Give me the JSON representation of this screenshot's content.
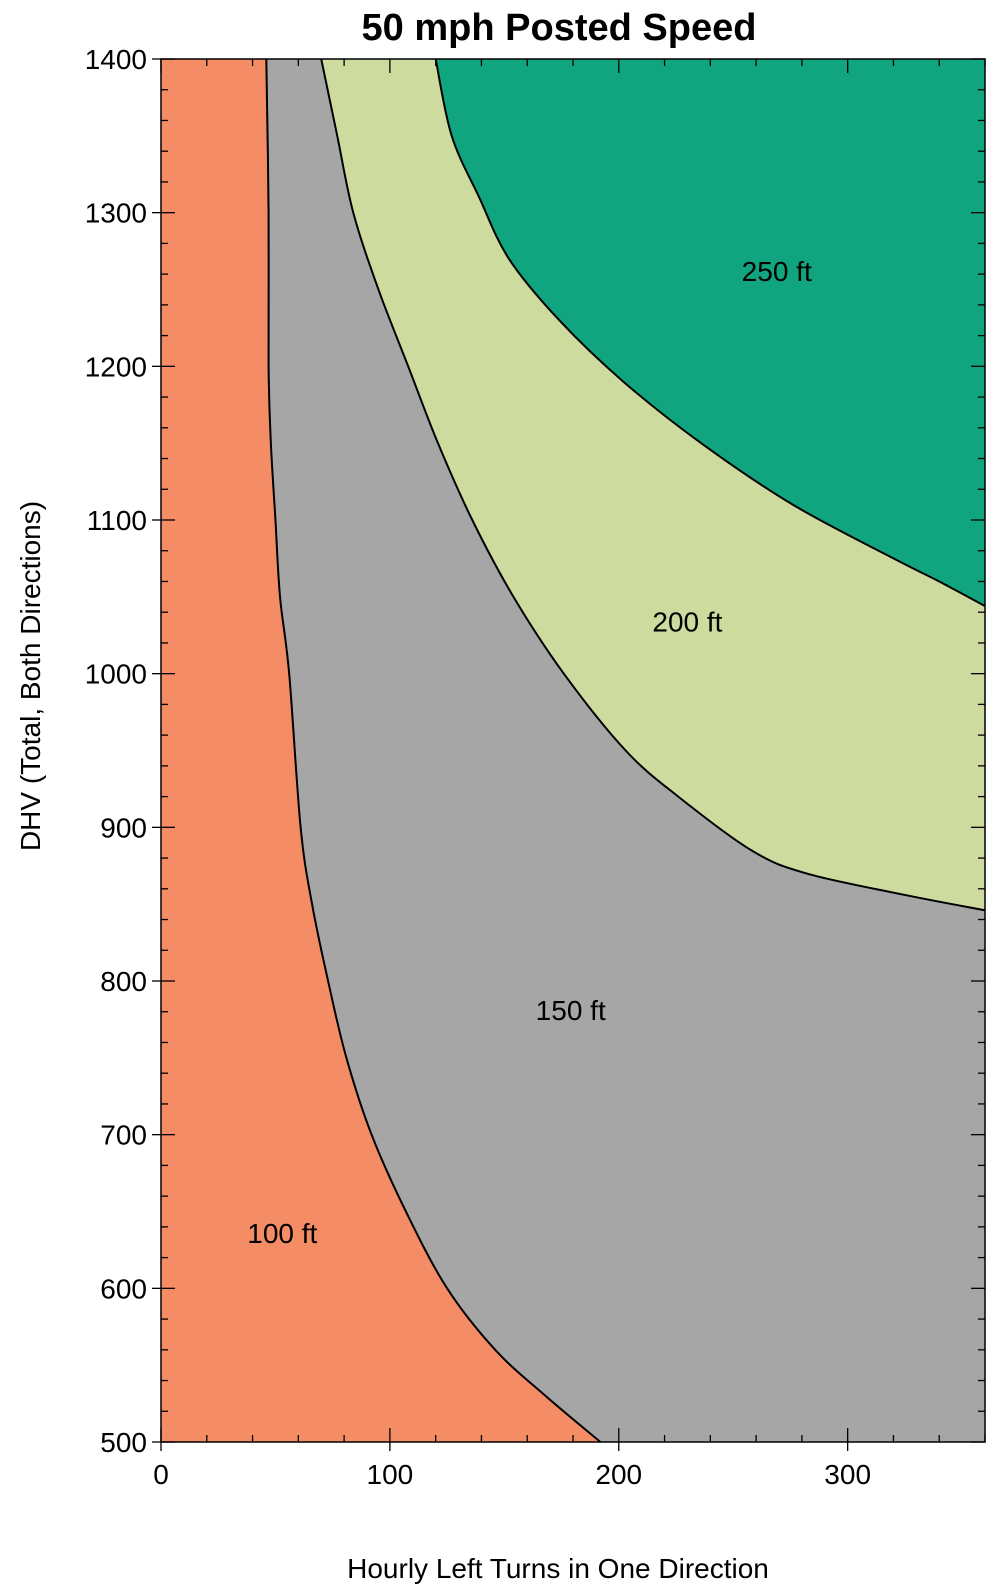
{
  "chart_data": {
    "type": "area",
    "title": "50 mph Posted Speed",
    "xlabel": "Hourly Left Turns in One Direction",
    "ylabel": "DHV (Total, Both Directions)",
    "xlim": [
      0,
      360
    ],
    "ylim": [
      500,
      1400
    ],
    "x_ticks": [
      0,
      100,
      200,
      300
    ],
    "x_tick_labels": [
      "0",
      "100",
      "200",
      "300"
    ],
    "x_minor_step": 20,
    "y_ticks": [
      500,
      600,
      700,
      800,
      900,
      1000,
      1100,
      1200,
      1300,
      1400
    ],
    "y_tick_labels": [
      "500",
      "600",
      "700",
      "800",
      "900",
      "1000",
      "1100",
      "1200",
      "1300",
      "1400"
    ],
    "y_minor_step": 20,
    "grid": false,
    "colors": {
      "100 ft": "#f48c66",
      "150 ft": "#a6a6a6",
      "200 ft": "#cddc9e",
      "250 ft": "#10a57e",
      "boundary": "#000000"
    },
    "regions": [
      {
        "name": "100 ft",
        "label": "100 ft",
        "label_at": [
          53,
          636
        ]
      },
      {
        "name": "150 ft",
        "label": "150 ft",
        "label_at": [
          179,
          781
        ]
      },
      {
        "name": "200 ft",
        "label": "200 ft",
        "label_at": [
          230,
          1034
        ]
      },
      {
        "name": "250 ft",
        "label": "250 ft",
        "label_at": [
          269,
          1262
        ]
      }
    ],
    "boundaries": [
      {
        "between": [
          "100 ft",
          "150 ft"
        ],
        "points": [
          [
            46,
            1400
          ],
          [
            47,
            1300
          ],
          [
            47,
            1200
          ],
          [
            48,
            1150
          ],
          [
            50,
            1100
          ],
          [
            52,
            1050
          ],
          [
            56,
            1000
          ],
          [
            61,
            900
          ],
          [
            66,
            850
          ],
          [
            73,
            800
          ],
          [
            81,
            750
          ],
          [
            92,
            700
          ],
          [
            107,
            650
          ],
          [
            125,
            600
          ],
          [
            146,
            560
          ],
          [
            168,
            530
          ],
          [
            192,
            500
          ]
        ]
      },
      {
        "between": [
          "150 ft",
          "200 ft"
        ],
        "points": [
          [
            70,
            1400
          ],
          [
            77,
            1350
          ],
          [
            84,
            1300
          ],
          [
            95,
            1250
          ],
          [
            108,
            1200
          ],
          [
            121,
            1150
          ],
          [
            136,
            1100
          ],
          [
            154,
            1050
          ],
          [
            176,
            1000
          ],
          [
            203,
            950
          ],
          [
            226,
            920
          ],
          [
            258,
            885
          ],
          [
            282,
            870
          ],
          [
            325,
            856
          ],
          [
            360,
            846
          ]
        ]
      },
      {
        "between": [
          "200 ft",
          "250 ft"
        ],
        "points": [
          [
            120,
            1400
          ],
          [
            127,
            1350
          ],
          [
            139,
            1310
          ],
          [
            152,
            1270
          ],
          [
            174,
            1230
          ],
          [
            202,
            1190
          ],
          [
            236,
            1150
          ],
          [
            276,
            1110
          ],
          [
            320,
            1075
          ],
          [
            340,
            1060
          ],
          [
            360,
            1044
          ]
        ]
      }
    ]
  }
}
